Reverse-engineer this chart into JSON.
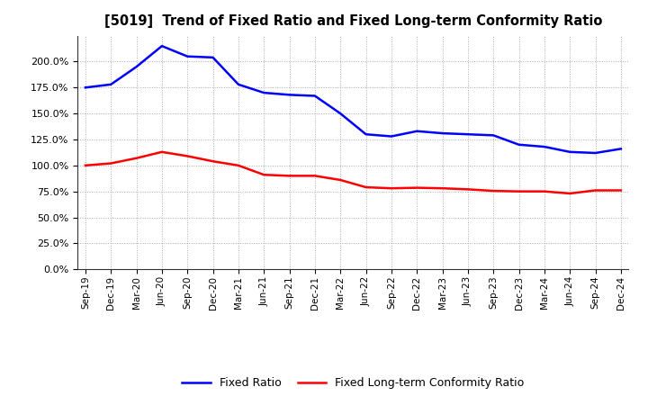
{
  "title": "[5019]  Trend of Fixed Ratio and Fixed Long-term Conformity Ratio",
  "x_labels": [
    "Sep-19",
    "Dec-19",
    "Mar-20",
    "Jun-20",
    "Sep-20",
    "Dec-20",
    "Mar-21",
    "Jun-21",
    "Sep-21",
    "Dec-21",
    "Mar-22",
    "Jun-22",
    "Sep-22",
    "Dec-22",
    "Mar-23",
    "Jun-23",
    "Sep-23",
    "Dec-23",
    "Mar-24",
    "Jun-24",
    "Sep-24",
    "Dec-24"
  ],
  "fixed_ratio": [
    175.0,
    178.0,
    195.0,
    215.0,
    205.0,
    204.0,
    178.0,
    170.0,
    168.0,
    167.0,
    150.0,
    130.0,
    128.0,
    133.0,
    131.0,
    130.0,
    129.0,
    120.0,
    118.0,
    113.0,
    112.0,
    116.0
  ],
  "fixed_ltcr": [
    100.0,
    102.0,
    107.0,
    113.0,
    109.0,
    104.0,
    100.0,
    91.0,
    90.0,
    90.0,
    86.0,
    79.0,
    78.0,
    78.5,
    78.0,
    77.0,
    75.5,
    75.0,
    75.0,
    73.0,
    76.0,
    76.0
  ],
  "ylim": [
    0,
    225
  ],
  "yticks": [
    0,
    25,
    50,
    75,
    100,
    125,
    150,
    175,
    200
  ],
  "line_color_fixed": "#0000FF",
  "line_color_ltcr": "#FF0000",
  "background_color": "#FFFFFF",
  "grid_color": "#AAAAAA",
  "legend_fixed": "Fixed Ratio",
  "legend_ltcr": "Fixed Long-term Conformity Ratio"
}
